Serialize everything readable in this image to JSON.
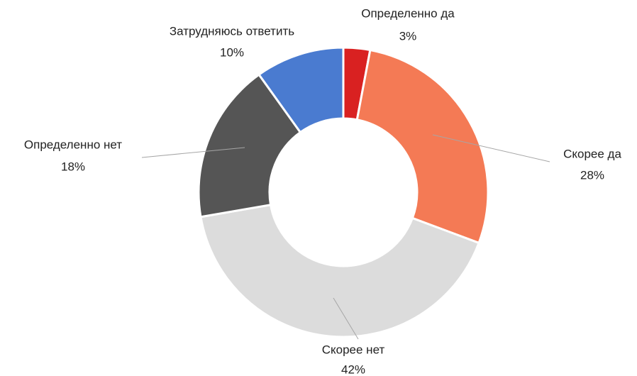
{
  "chart_data": {
    "type": "donut",
    "categories": [
      "Определенно да",
      "Скорее да",
      "Скорее нет",
      "Определенно нет",
      "Затрудняюсь ответить"
    ],
    "values": [
      3,
      28,
      42,
      18,
      10
    ],
    "value_labels": [
      "3%",
      "28%",
      "42%",
      "18%",
      "10%"
    ],
    "colors": [
      "#d92121",
      "#f47a55",
      "#dcdcdc",
      "#555555",
      "#4a7bd0"
    ]
  }
}
